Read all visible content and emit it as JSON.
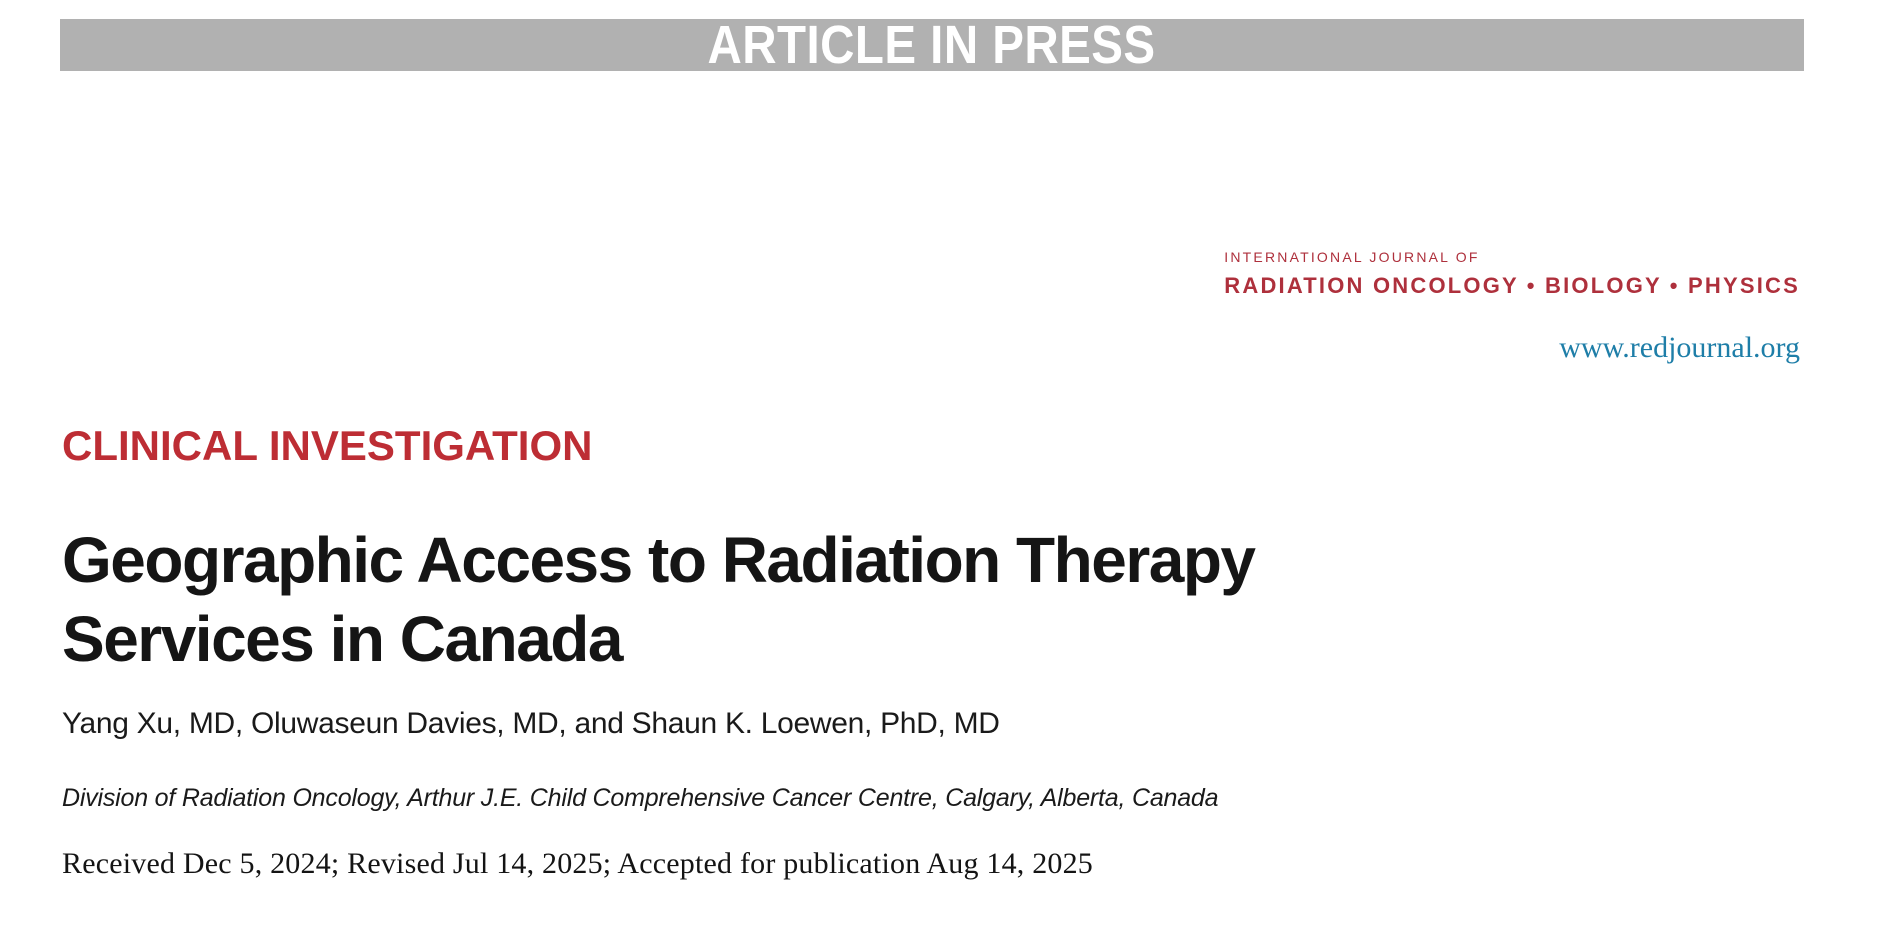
{
  "banner": {
    "label": "ARTICLE IN PRESS"
  },
  "journal": {
    "super_title": "INTERNATIONAL JOURNAL OF",
    "title": "RADIATION ONCOLOGY • BIOLOGY • PHYSICS",
    "website": "www.redjournal.org"
  },
  "section_heading": "CLINICAL INVESTIGATION",
  "article": {
    "title_lines": [
      "Geographic Access to Radiation Therapy",
      "Services in Canada"
    ],
    "authors": "Yang Xu, MD, Oluwaseun Davies, MD, and Shaun K. Loewen, PhD, MD",
    "affiliation": "Division of Radiation Oncology, Arthur J.E. Child Comprehensive Cancer Centre, Calgary, Alberta, Canada",
    "history": "Received Dec 5, 2024; Revised Jul 14, 2025; Accepted for publication Aug 14, 2025"
  },
  "colors": {
    "banner_bg": "#b1b1b1",
    "banner_text": "#ffffff",
    "journal_red": "#ae303c",
    "section_red": "#bd2d34",
    "link_teal": "#1e7ea8",
    "title_black": "#151515"
  }
}
